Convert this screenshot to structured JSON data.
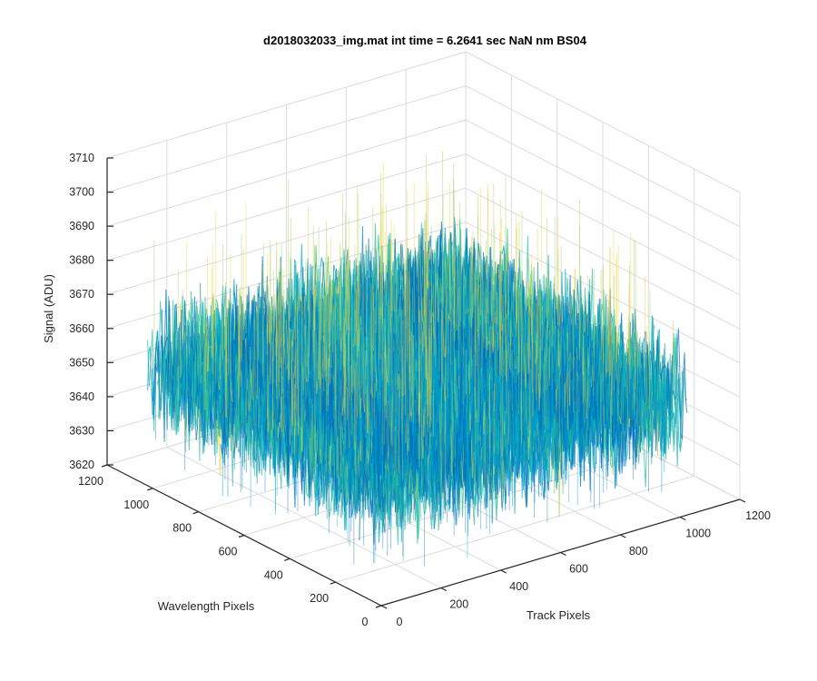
{
  "chart_data": {
    "type": "surface",
    "title": "d2018032033_img.mat int time = 6.2641 sec  NaN nm BS04",
    "xlabel": "Track Pixels",
    "ylabel": "Wavelength Pixels",
    "zlabel": "Signal (ADU)",
    "xlim": [
      0,
      1200
    ],
    "ylim": [
      0,
      1200
    ],
    "zlim": [
      3620,
      3710
    ],
    "xticks": [
      "0",
      "200",
      "400",
      "600",
      "800",
      "1000",
      "1200"
    ],
    "yticks": [
      "0",
      "200",
      "400",
      "600",
      "800",
      "1000",
      "1200"
    ],
    "zticks": [
      "3620",
      "3630",
      "3640",
      "3650",
      "3660",
      "3670",
      "3680",
      "3690",
      "3700",
      "3710"
    ],
    "data_extent": {
      "x": [
        1,
        1024
      ],
      "y": [
        1,
        1024
      ]
    },
    "signal_mean": 3655,
    "signal_range": [
      3625,
      3705
    ],
    "colormap": [
      "#0072bd",
      "#00a4c8",
      "#2fbfa0",
      "#a6d26a",
      "#e8d640"
    ],
    "grid": true
  }
}
